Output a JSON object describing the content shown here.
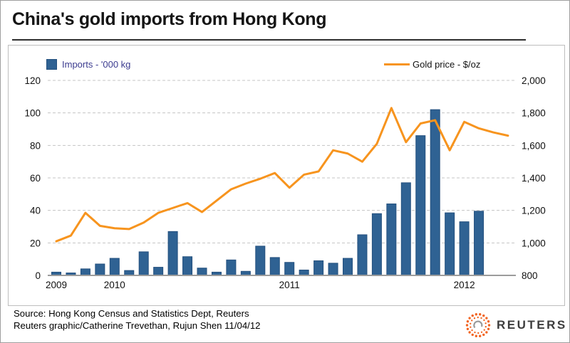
{
  "header": {
    "title": "China's gold imports from Hong Kong"
  },
  "legend": {
    "imports_label": "Imports - '000 kg",
    "gold_label": "Gold price - $/oz"
  },
  "footer": {
    "source_line": "Source: Hong Kong Census and Statistics Dept, Reuters",
    "credit_line": "Reuters graphic/Catherine Trevethan, Rujun Shen 11/04/12",
    "logo_text": "REUTERS"
  },
  "colors": {
    "bar_fill": "#2f6293",
    "bar_border": "#24507e",
    "line_orange": "#f7941e",
    "legend_blue_text": "#3b3b8f",
    "grid": "#c4c4c4",
    "axis_baseline": "#9b9b9b",
    "logo_orange": "#f26522"
  },
  "chart_data": {
    "type": "combo (bar + line)",
    "title": "China's gold imports from Hong Kong",
    "x_unit": "months, Sep 2009 - Apr 2012 (32 slots; bars end Feb 2012)",
    "grid": "horizontal dashed",
    "legend_position": "top inside, left and right",
    "x_tick_labels": [
      {
        "label": "2009",
        "month_index": 0
      },
      {
        "label": "2010",
        "month_index": 4
      },
      {
        "label": "2011",
        "month_index": 16
      },
      {
        "label": "2012",
        "month_index": 28
      }
    ],
    "left_axis": {
      "label": "Imports - '000 kg",
      "ticks": [
        0,
        20,
        40,
        60,
        80,
        100,
        120
      ],
      "range": [
        0,
        120
      ]
    },
    "right_axis": {
      "label": "Gold price - $/oz",
      "ticks": [
        "800",
        "1,000",
        "1,200",
        "1,400",
        "1,600",
        "1,800",
        "2,000"
      ],
      "range": [
        800,
        2000
      ]
    },
    "series": [
      {
        "name": "Imports - '000 kg",
        "type": "bar",
        "axis": "left",
        "values": [
          2,
          1.5,
          4,
          7,
          10.5,
          3,
          14.5,
          5,
          27,
          11.5,
          4.5,
          2,
          9.5,
          2.5,
          18,
          11,
          8,
          3.3,
          9,
          7.5,
          10.5,
          25,
          38,
          44,
          57,
          86,
          102,
          38.5,
          33,
          39.5
        ]
      },
      {
        "name": "Gold price - $/oz",
        "type": "line",
        "axis": "right",
        "values": [
          1010,
          1045,
          1185,
          1105,
          1090,
          1085,
          1125,
          1185,
          1215,
          1245,
          1190,
          1260,
          1330,
          1365,
          1395,
          1430,
          1340,
          1420,
          1440,
          1570,
          1550,
          1500,
          1610,
          1830,
          1620,
          1735,
          1755,
          1570,
          1745,
          1705,
          1680,
          1660
        ]
      }
    ]
  }
}
